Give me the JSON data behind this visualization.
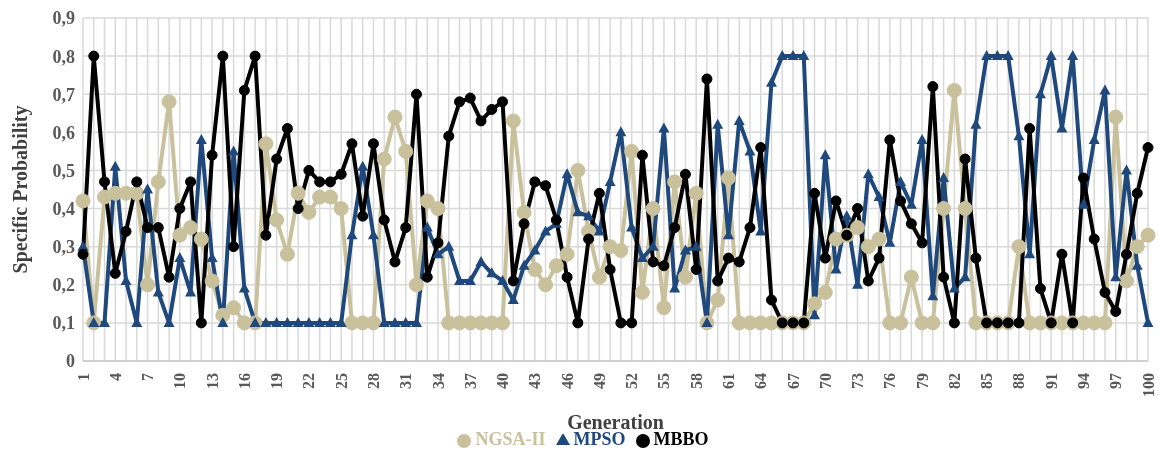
{
  "chart_data": {
    "type": "line",
    "xlabel": "Generation",
    "ylabel": "Specific Probability",
    "categories": [
      "1",
      null,
      null,
      "4",
      null,
      null,
      "7",
      null,
      null,
      "10",
      null,
      null,
      "13",
      null,
      null,
      "16",
      null,
      null,
      "19",
      null,
      null,
      "22",
      null,
      null,
      "25",
      null,
      null,
      "28",
      null,
      null,
      "31",
      null,
      null,
      "34",
      null,
      null,
      "37",
      null,
      null,
      "40",
      null,
      null,
      "43",
      null,
      null,
      "46",
      null,
      null,
      "49",
      null,
      null,
      "52",
      null,
      null,
      "55",
      null,
      null,
      "58",
      null,
      null,
      "61",
      null,
      null,
      "64",
      null,
      null,
      "67",
      null,
      null,
      "70",
      null,
      null,
      "73",
      null,
      null,
      "76",
      null,
      null,
      "79",
      null,
      null,
      "82",
      null,
      null,
      "85",
      null,
      null,
      "88",
      null,
      null,
      "91",
      null,
      null,
      "94",
      null,
      null,
      "97",
      null,
      null,
      "100"
    ],
    "series": [
      {
        "name": "NGSA-II",
        "color": "#c9c09c",
        "marker": "circle",
        "values": [
          0.42,
          0.1,
          0.43,
          0.44,
          0.44,
          0.44,
          0.2,
          0.47,
          0.68,
          0.33,
          0.35,
          0.32,
          0.21,
          0.12,
          0.14,
          0.1,
          0.1,
          0.57,
          0.37,
          0.28,
          0.44,
          0.39,
          0.43,
          0.43,
          0.4,
          0.1,
          0.1,
          0.1,
          0.53,
          0.64,
          0.55,
          0.2,
          0.42,
          0.4,
          0.1,
          0.1,
          0.1,
          0.1,
          0.1,
          0.1,
          0.63,
          0.39,
          0.24,
          0.2,
          0.25,
          0.28,
          0.5,
          0.34,
          0.22,
          0.3,
          0.29,
          0.55,
          0.18,
          0.4,
          0.14,
          0.47,
          0.22,
          0.44,
          0.1,
          0.16,
          0.48,
          0.1,
          0.1,
          0.1,
          0.1,
          0.1,
          0.1,
          0.1,
          0.15,
          0.18,
          0.32,
          0.33,
          0.35,
          0.3,
          0.32,
          0.1,
          0.1,
          0.22,
          0.1,
          0.1,
          0.4,
          0.71,
          0.4,
          0.1,
          0.1,
          0.1,
          0.1,
          0.3,
          0.1,
          0.1,
          0.1,
          0.1,
          0.1,
          0.1,
          0.1,
          0.1,
          0.64,
          0.21,
          0.3,
          0.33
        ]
      },
      {
        "name": "MPSO",
        "color": "#1f497d",
        "marker": "triangle",
        "values": [
          0.3,
          0.1,
          0.1,
          0.51,
          0.21,
          0.1,
          0.45,
          0.18,
          0.1,
          0.27,
          0.18,
          0.58,
          0.27,
          0.1,
          0.55,
          0.19,
          0.1,
          0.1,
          0.1,
          0.1,
          0.1,
          0.1,
          0.1,
          0.1,
          0.1,
          0.33,
          0.51,
          0.33,
          0.1,
          0.1,
          0.1,
          0.1,
          0.35,
          0.28,
          0.3,
          0.21,
          0.21,
          0.26,
          0.23,
          0.21,
          0.16,
          0.25,
          0.29,
          0.34,
          0.36,
          0.49,
          0.39,
          0.38,
          0.34,
          0.47,
          0.6,
          0.35,
          0.27,
          0.3,
          0.61,
          0.19,
          0.29,
          0.3,
          0.1,
          0.62,
          0.33,
          0.63,
          0.55,
          0.34,
          0.73,
          0.8,
          0.8,
          0.8,
          0.12,
          0.54,
          0.24,
          0.38,
          0.2,
          0.49,
          0.43,
          0.31,
          0.47,
          0.41,
          0.58,
          0.17,
          0.48,
          0.19,
          0.22,
          0.62,
          0.8,
          0.8,
          0.8,
          0.59,
          0.28,
          0.7,
          0.8,
          0.61,
          0.8,
          0.41,
          0.58,
          0.71,
          0.22,
          0.5,
          0.25,
          0.1
        ]
      },
      {
        "name": "MBBO",
        "color": "#000000",
        "marker": "circle",
        "values": [
          0.28,
          0.8,
          0.47,
          0.23,
          0.34,
          0.47,
          0.35,
          0.35,
          0.22,
          0.4,
          0.47,
          0.1,
          0.54,
          0.8,
          0.3,
          0.71,
          0.8,
          0.33,
          0.53,
          0.61,
          0.4,
          0.5,
          0.47,
          0.47,
          0.49,
          0.57,
          0.38,
          0.57,
          0.37,
          0.26,
          0.35,
          0.7,
          0.22,
          0.31,
          0.59,
          0.68,
          0.69,
          0.63,
          0.66,
          0.68,
          0.21,
          0.36,
          0.47,
          0.46,
          0.37,
          0.22,
          0.1,
          0.32,
          0.44,
          0.24,
          0.1,
          0.1,
          0.54,
          0.26,
          0.25,
          0.35,
          0.49,
          0.24,
          0.74,
          0.21,
          0.27,
          0.26,
          0.35,
          0.56,
          0.16,
          0.1,
          0.1,
          0.1,
          0.44,
          0.27,
          0.42,
          0.33,
          0.4,
          0.21,
          0.27,
          0.58,
          0.42,
          0.36,
          0.31,
          0.72,
          0.22,
          0.1,
          0.53,
          0.27,
          0.1,
          0.1,
          0.1,
          0.1,
          0.61,
          0.19,
          0.1,
          0.28,
          0.1,
          0.48,
          0.32,
          0.18,
          0.13,
          0.28,
          0.44,
          0.56
        ]
      }
    ],
    "ylim": [
      0,
      0.9
    ],
    "yticks": [
      {
        "value": 0,
        "label": "0"
      },
      {
        "value": 0.1,
        "label": "0,1"
      },
      {
        "value": 0.2,
        "label": "0,2"
      },
      {
        "value": 0.3,
        "label": "0,3"
      },
      {
        "value": 0.4,
        "label": "0,4"
      },
      {
        "value": 0.5,
        "label": "0,5"
      },
      {
        "value": 0.6,
        "label": "0,6"
      },
      {
        "value": 0.7,
        "label": "0,7"
      },
      {
        "value": 0.8,
        "label": "0,8"
      },
      {
        "value": 0.9,
        "label": "0,9"
      }
    ],
    "grid": true,
    "legend": "bottom",
    "line_style": "solid"
  }
}
